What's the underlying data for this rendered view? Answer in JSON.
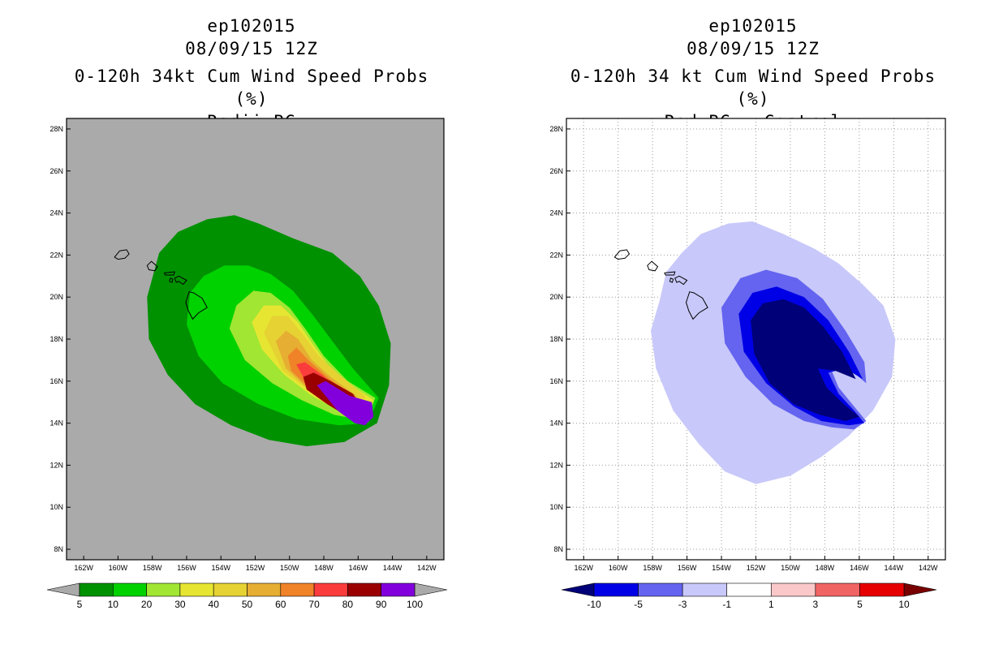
{
  "chart_data": [
    {
      "type": "contour-map",
      "title_lines": [
        "ep102015",
        "08/09/15 12Z",
        "0-120h 34kt Cum Wind Speed Probs (%)",
        "Radii BC"
      ],
      "xlabel": "",
      "ylabel": "",
      "xlim": [
        -163,
        -141
      ],
      "ylim": [
        7.5,
        28.5
      ],
      "x_ticks": [
        -162,
        -160,
        -158,
        -156,
        -154,
        -152,
        -150,
        -148,
        -146,
        -144,
        -142
      ],
      "x_tick_labels": [
        "162W",
        "160W",
        "158W",
        "156W",
        "154W",
        "152W",
        "150W",
        "148W",
        "146W",
        "144W",
        "142W"
      ],
      "y_ticks": [
        8,
        10,
        12,
        14,
        16,
        18,
        20,
        22,
        24,
        26,
        28
      ],
      "y_tick_labels": [
        "8N",
        "10N",
        "12N",
        "14N",
        "16N",
        "18N",
        "20N",
        "22N",
        "24N",
        "26N",
        "28N"
      ],
      "grid": false,
      "background": "#aaaaaa",
      "colorbar": {
        "labels": [
          "5",
          "10",
          "20",
          "30",
          "40",
          "50",
          "60",
          "70",
          "80",
          "90",
          "100"
        ],
        "colors": [
          "#009100",
          "#00d200",
          "#a0e632",
          "#e6e632",
          "#e6d232",
          "#e6ae32",
          "#f08228",
          "#fa3c3c",
          "#9b0000",
          "#8200dc"
        ],
        "under_color": "#aaaaaa",
        "over_color": "#aaaaaa"
      },
      "regions": [
        {
          "level": 5,
          "color": "#009100",
          "points": [
            [
              -157.6,
              22.1
            ],
            [
              -156.5,
              23.1
            ],
            [
              -154.8,
              23.7
            ],
            [
              -153.2,
              23.9
            ],
            [
              -151.8,
              23.5
            ],
            [
              -149.8,
              22.8
            ],
            [
              -147.5,
              22.1
            ],
            [
              -145.9,
              21.0
            ],
            [
              -144.8,
              19.6
            ],
            [
              -144.1,
              17.8
            ],
            [
              -144.2,
              15.8
            ],
            [
              -144.9,
              14.0
            ],
            [
              -146.8,
              13.1
            ],
            [
              -149.0,
              12.9
            ],
            [
              -151.2,
              13.2
            ],
            [
              -153.4,
              13.9
            ],
            [
              -155.5,
              14.9
            ],
            [
              -157.1,
              16.3
            ],
            [
              -158.2,
              18.0
            ],
            [
              -158.3,
              20.0
            ]
          ]
        },
        {
          "level": 10,
          "color": "#00d200",
          "points": [
            [
              -155.8,
              20.2
            ],
            [
              -155.0,
              21.0
            ],
            [
              -153.8,
              21.5
            ],
            [
              -152.4,
              21.5
            ],
            [
              -151.1,
              21.1
            ],
            [
              -149.8,
              20.3
            ],
            [
              -148.6,
              19.1
            ],
            [
              -147.5,
              17.9
            ],
            [
              -146.3,
              16.6
            ],
            [
              -144.8,
              15.2
            ],
            [
              -145.4,
              14.0
            ],
            [
              -147.1,
              13.9
            ],
            [
              -149.6,
              14.2
            ],
            [
              -151.8,
              14.9
            ],
            [
              -153.9,
              15.9
            ],
            [
              -155.3,
              17.2
            ],
            [
              -156.0,
              18.7
            ]
          ]
        },
        {
          "level": 20,
          "color": "#a0e632",
          "points": [
            [
              -153.5,
              18.5
            ],
            [
              -153.1,
              19.6
            ],
            [
              -152.1,
              20.3
            ],
            [
              -151.1,
              20.2
            ],
            [
              -150.0,
              19.5
            ],
            [
              -149.0,
              18.4
            ],
            [
              -148.0,
              17.2
            ],
            [
              -146.6,
              16.0
            ],
            [
              -145.0,
              15.2
            ],
            [
              -145.5,
              14.1
            ],
            [
              -147.4,
              14.4
            ],
            [
              -149.3,
              15.1
            ],
            [
              -151.0,
              15.9
            ],
            [
              -152.6,
              17.0
            ]
          ]
        },
        {
          "level": 30,
          "color": "#e6e632",
          "points": [
            [
              -152.2,
              18.8
            ],
            [
              -151.5,
              19.6
            ],
            [
              -150.5,
              19.6
            ],
            [
              -149.5,
              18.8
            ],
            [
              -148.6,
              17.7
            ],
            [
              -147.6,
              16.6
            ],
            [
              -146.2,
              15.7
            ],
            [
              -145.1,
              15.1
            ],
            [
              -145.6,
              14.2
            ],
            [
              -147.1,
              14.6
            ],
            [
              -148.7,
              15.3
            ],
            [
              -150.3,
              16.3
            ],
            [
              -151.6,
              17.5
            ]
          ]
        },
        {
          "level": 40,
          "color": "#e6d232",
          "points": [
            [
              -151.5,
              18.3
            ],
            [
              -151.0,
              19.1
            ],
            [
              -150.1,
              19.1
            ],
            [
              -149.2,
              18.2
            ],
            [
              -148.3,
              17.2
            ],
            [
              -147.1,
              16.3
            ],
            [
              -145.6,
              15.3
            ],
            [
              -145.8,
              14.4
            ],
            [
              -147.3,
              14.8
            ],
            [
              -148.9,
              15.6
            ],
            [
              -150.4,
              16.5
            ]
          ]
        },
        {
          "level": 50,
          "color": "#e6ae32",
          "points": [
            [
              -150.8,
              17.9
            ],
            [
              -150.2,
              18.4
            ],
            [
              -149.5,
              18.0
            ],
            [
              -148.7,
              17.0
            ],
            [
              -147.6,
              16.2
            ],
            [
              -146.1,
              15.3
            ],
            [
              -145.9,
              14.6
            ],
            [
              -147.5,
              14.9
            ],
            [
              -149.0,
              15.7
            ],
            [
              -150.2,
              16.6
            ]
          ]
        },
        {
          "level": 60,
          "color": "#f08228",
          "points": [
            [
              -150.1,
              17.2
            ],
            [
              -149.6,
              17.6
            ],
            [
              -148.9,
              17.0
            ],
            [
              -147.8,
              16.2
            ],
            [
              -146.4,
              15.3
            ],
            [
              -146.0,
              14.7
            ],
            [
              -147.6,
              15.0
            ],
            [
              -149.0,
              15.8
            ],
            [
              -149.9,
              16.5
            ]
          ]
        },
        {
          "level": 70,
          "color": "#fa3c3c",
          "points": [
            [
              -149.6,
              16.8
            ],
            [
              -149.1,
              16.9
            ],
            [
              -148.1,
              16.3
            ],
            [
              -146.7,
              15.3
            ],
            [
              -146.1,
              14.8
            ],
            [
              -147.7,
              15.1
            ],
            [
              -149.0,
              15.9
            ]
          ]
        },
        {
          "level": 80,
          "color": "#9b0000",
          "points": [
            [
              -149.2,
              16.2
            ],
            [
              -148.6,
              16.4
            ],
            [
              -147.6,
              16.0
            ],
            [
              -146.3,
              15.4
            ],
            [
              -145.7,
              14.6
            ],
            [
              -145.5,
              14.2
            ],
            [
              -146.4,
              14.2
            ],
            [
              -147.8,
              14.9
            ],
            [
              -149.0,
              15.6
            ]
          ]
        },
        {
          "level": 90,
          "color": "#8200dc",
          "points": [
            [
              -148.4,
              15.8
            ],
            [
              -147.9,
              16.0
            ],
            [
              -146.5,
              15.3
            ],
            [
              -145.2,
              15.0
            ],
            [
              -145.1,
              14.3
            ],
            [
              -145.6,
              13.9
            ],
            [
              -146.2,
              14.0
            ],
            [
              -147.2,
              14.6
            ]
          ]
        }
      ]
    },
    {
      "type": "contour-map",
      "title_lines": [
        "ep102015",
        "08/09/15 12Z",
        "0-120h 34 kt Cum Wind Speed Probs (%)",
        "Rad BC - Control"
      ],
      "xlabel": "",
      "ylabel": "",
      "xlim": [
        -163,
        -141
      ],
      "ylim": [
        7.5,
        28.5
      ],
      "x_ticks": [
        -162,
        -160,
        -158,
        -156,
        -154,
        -152,
        -150,
        -148,
        -146,
        -144,
        -142
      ],
      "x_tick_labels": [
        "162W",
        "160W",
        "158W",
        "156W",
        "154W",
        "152W",
        "150W",
        "148W",
        "146W",
        "144W",
        "142W"
      ],
      "y_ticks": [
        8,
        10,
        12,
        14,
        16,
        18,
        20,
        22,
        24,
        26,
        28
      ],
      "y_tick_labels": [
        "8N",
        "10N",
        "12N",
        "14N",
        "16N",
        "18N",
        "20N",
        "22N",
        "24N",
        "26N",
        "28N"
      ],
      "grid": true,
      "background": "#ffffff",
      "colorbar": {
        "labels": [
          "-10",
          "-5",
          "-3",
          "-1",
          "1",
          "3",
          "5",
          "10"
        ],
        "colors": [
          "#0000e6",
          "#6464f0",
          "#c8c8fa",
          "#ffffff",
          "#fac8c8",
          "#f06464",
          "#e60000"
        ],
        "under_color": "#000078",
        "over_color": "#780000"
      },
      "regions": [
        {
          "level": -1,
          "color": "#c8c8fa",
          "points": [
            [
              -157.6,
              19.8
            ],
            [
              -157.2,
              21.2
            ],
            [
              -156.3,
              22.1
            ],
            [
              -155.2,
              23.0
            ],
            [
              -153.6,
              23.5
            ],
            [
              -152.2,
              23.6
            ],
            [
              -150.4,
              23.0
            ],
            [
              -148.6,
              22.3
            ],
            [
              -147.2,
              21.6
            ],
            [
              -145.8,
              20.6
            ],
            [
              -144.6,
              19.6
            ],
            [
              -143.9,
              18.0
            ],
            [
              -144.1,
              16.2
            ],
            [
              -145.2,
              14.6
            ],
            [
              -146.6,
              13.4
            ],
            [
              -148.2,
              12.4
            ],
            [
              -150.0,
              11.5
            ],
            [
              -152.0,
              11.1
            ],
            [
              -153.8,
              11.7
            ],
            [
              -155.3,
              13.0
            ],
            [
              -156.8,
              14.6
            ],
            [
              -157.8,
              16.6
            ],
            [
              -158.1,
              18.4
            ]
          ]
        },
        {
          "level": -3,
          "color": "#6464f0",
          "points": [
            [
              -154.0,
              19.5
            ],
            [
              -152.9,
              20.9
            ],
            [
              -151.4,
              21.3
            ],
            [
              -149.6,
              20.9
            ],
            [
              -148.1,
              19.9
            ],
            [
              -146.8,
              18.4
            ],
            [
              -145.7,
              16.9
            ],
            [
              -145.6,
              15.9
            ],
            [
              -146.6,
              16.6
            ],
            [
              -147.6,
              16.5
            ],
            [
              -147.2,
              15.7
            ],
            [
              -146.1,
              14.6
            ],
            [
              -145.6,
              14.1
            ],
            [
              -146.3,
              13.7
            ],
            [
              -147.6,
              13.8
            ],
            [
              -149.2,
              14.1
            ],
            [
              -151.0,
              14.9
            ],
            [
              -152.6,
              16.2
            ],
            [
              -153.8,
              17.8
            ]
          ]
        },
        {
          "level": -5,
          "color": "#0000e6",
          "points": [
            [
              -153.0,
              19.2
            ],
            [
              -152.2,
              20.2
            ],
            [
              -150.8,
              20.5
            ],
            [
              -149.2,
              20.0
            ],
            [
              -147.8,
              18.9
            ],
            [
              -146.6,
              17.4
            ],
            [
              -145.8,
              16.1
            ],
            [
              -146.8,
              16.6
            ],
            [
              -147.8,
              16.4
            ],
            [
              -147.2,
              15.4
            ],
            [
              -146.3,
              14.6
            ],
            [
              -145.7,
              14.0
            ],
            [
              -146.6,
              13.9
            ],
            [
              -148.2,
              14.1
            ],
            [
              -149.8,
              14.8
            ],
            [
              -151.4,
              15.9
            ],
            [
              -152.7,
              17.4
            ]
          ]
        },
        {
          "level": -10,
          "color": "#000078",
          "points": [
            [
              -152.3,
              18.9
            ],
            [
              -151.6,
              19.7
            ],
            [
              -150.4,
              19.9
            ],
            [
              -149.2,
              19.5
            ],
            [
              -148.1,
              18.6
            ],
            [
              -147.0,
              17.4
            ],
            [
              -146.2,
              16.1
            ],
            [
              -147.4,
              16.5
            ],
            [
              -148.4,
              16.6
            ],
            [
              -147.9,
              15.7
            ],
            [
              -146.9,
              14.9
            ],
            [
              -146.0,
              14.3
            ],
            [
              -146.8,
              14.1
            ],
            [
              -148.3,
              14.4
            ],
            [
              -149.8,
              14.9
            ],
            [
              -151.2,
              15.9
            ],
            [
              -152.1,
              17.3
            ]
          ]
        }
      ]
    }
  ]
}
